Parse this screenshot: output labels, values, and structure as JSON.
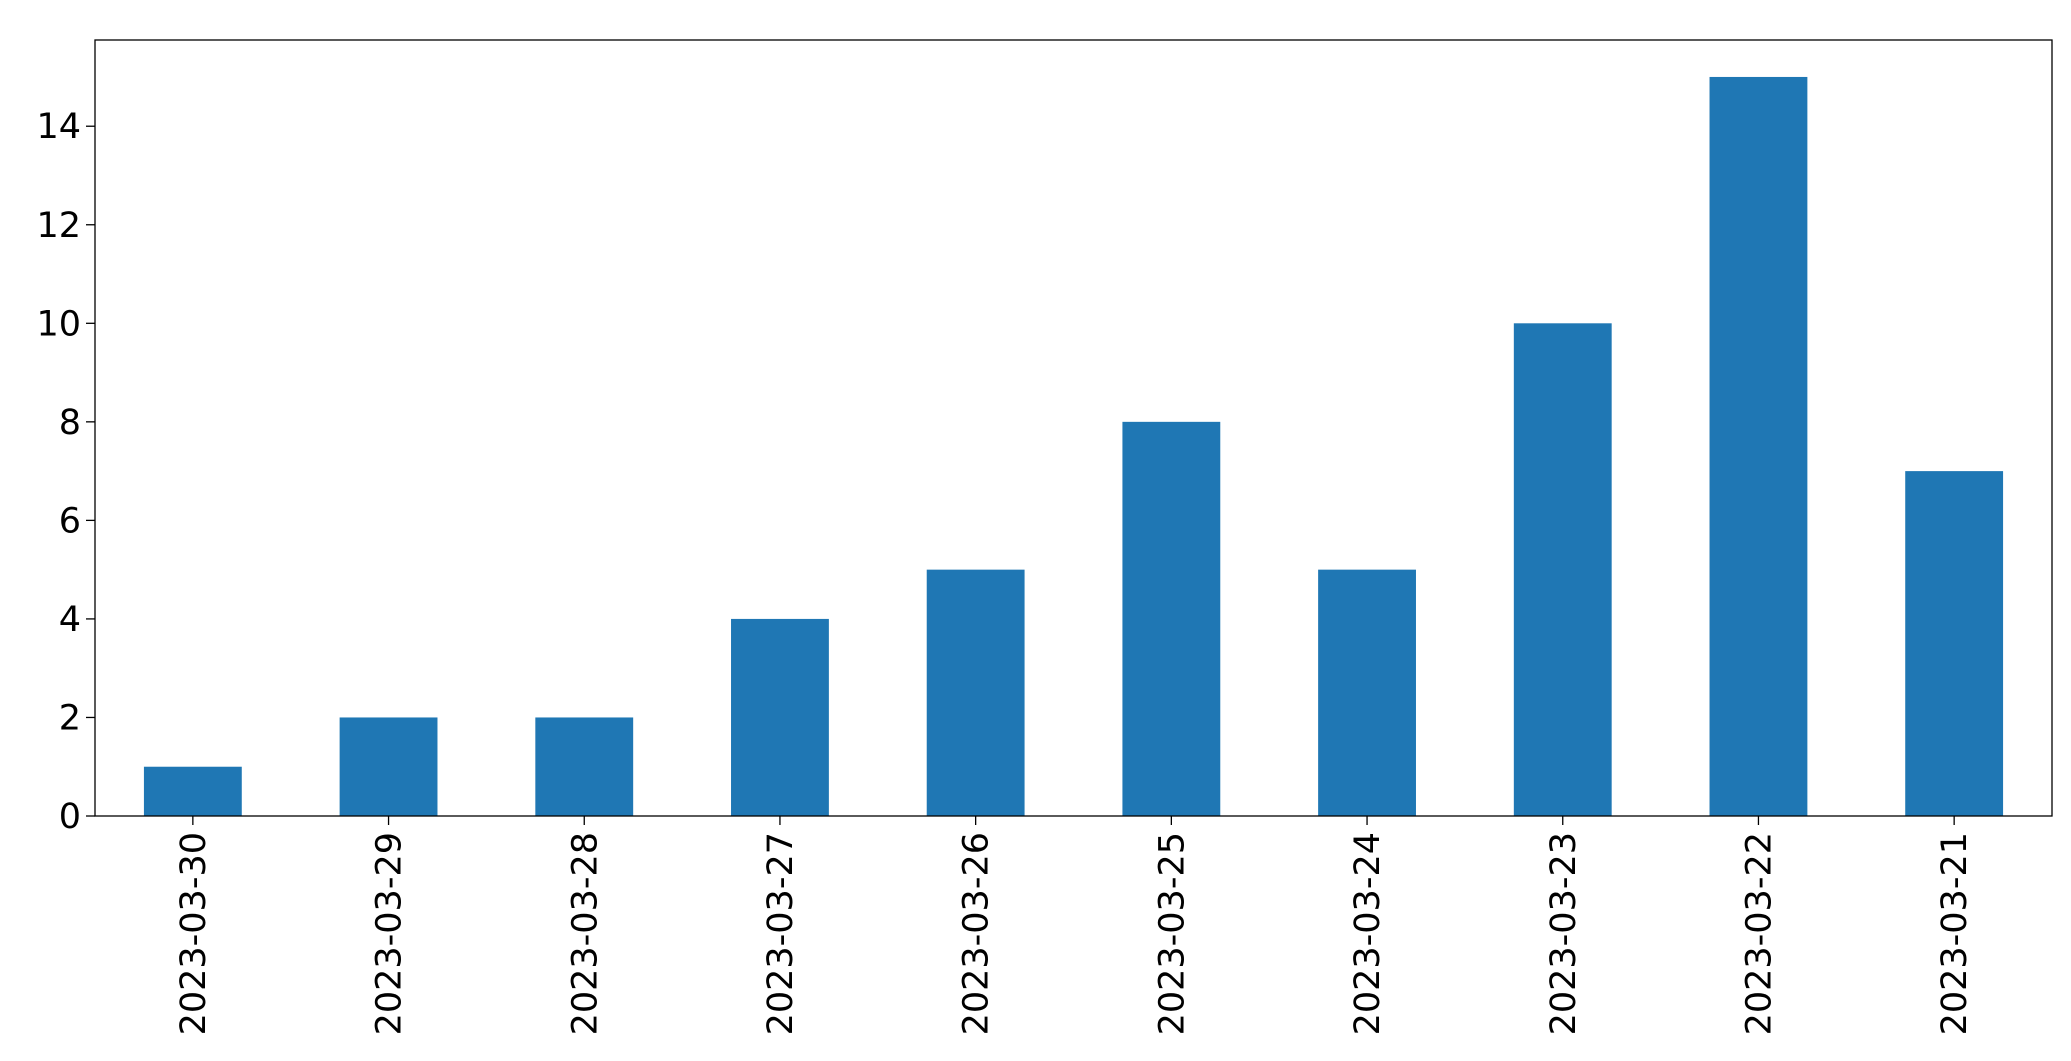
{
  "chart_data": {
    "type": "bar",
    "categories": [
      "2023-03-30",
      "2023-03-29",
      "2023-03-28",
      "2023-03-27",
      "2023-03-26",
      "2023-03-25",
      "2023-03-24",
      "2023-03-23",
      "2023-03-22",
      "2023-03-21"
    ],
    "values": [
      1,
      2,
      2,
      4,
      5,
      8,
      5,
      10,
      15,
      7
    ],
    "color": "#1f77b4",
    "ylim": [
      0,
      15.75
    ],
    "yticks": [
      0,
      2,
      4,
      6,
      8,
      10,
      12,
      14
    ],
    "grid": false
  }
}
